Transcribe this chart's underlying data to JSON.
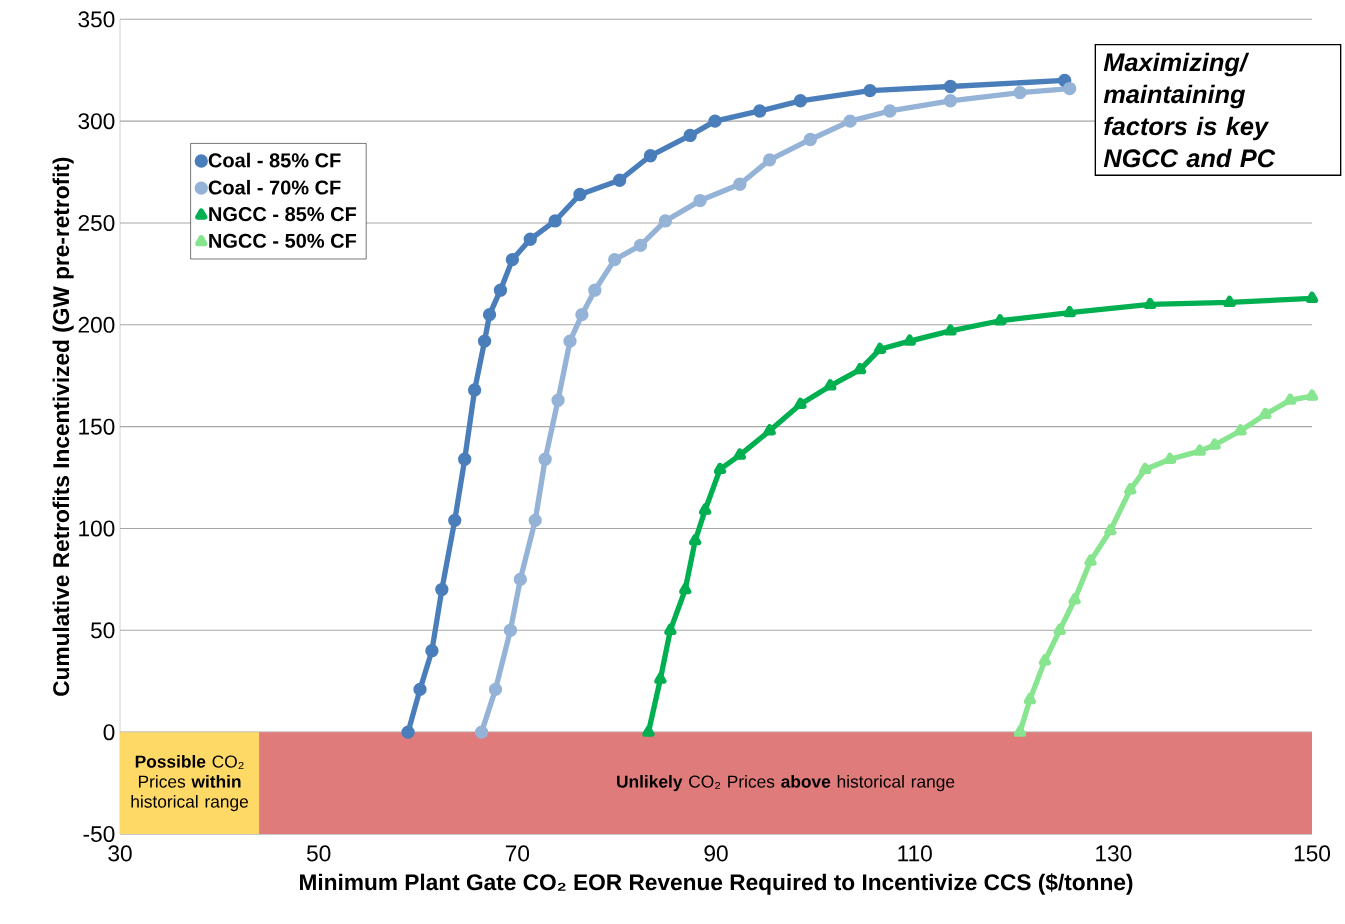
{
  "chart_data": {
    "type": "line",
    "xlabel": "Minimum  Plant Gate CO₂ EOR Revenue Required to Incentivize CCS ($/tonne)",
    "ylabel": "Cumulative Retrofits Incentivized (GW pre-retrofit)",
    "xlim": [
      30,
      150
    ],
    "ylim": [
      -50,
      350
    ],
    "xticks": [
      30,
      50,
      70,
      90,
      110,
      130,
      150
    ],
    "yticks": [
      -50,
      0,
      50,
      100,
      150,
      200,
      250,
      300,
      350
    ],
    "grid": "y",
    "legend": "top left",
    "series": [
      {
        "name": "Coal - 85% CF",
        "color": "#4a7ebb",
        "marker": "circle",
        "x": [
          59.0,
          60.2,
          61.4,
          62.4,
          63.7,
          64.7,
          65.7,
          66.7,
          67.2,
          68.3,
          69.5,
          71.3,
          73.8,
          76.3,
          80.3,
          83.4,
          87.4,
          89.9,
          94.4,
          98.5,
          105.5,
          113.6,
          125.1
        ],
        "values": [
          0,
          21,
          40,
          70,
          104,
          134,
          168,
          192,
          205,
          217,
          232,
          242,
          251,
          264,
          271,
          283,
          293,
          300,
          305,
          310,
          315,
          317,
          320
        ]
      },
      {
        "name": "Coal - 70% CF",
        "color": "#95b3d7",
        "marker": "circle",
        "x": [
          66.4,
          67.8,
          69.3,
          70.3,
          71.8,
          72.8,
          74.1,
          75.3,
          76.5,
          77.8,
          79.8,
          82.4,
          84.9,
          88.4,
          92.4,
          95.4,
          99.5,
          103.5,
          107.5,
          113.6,
          120.6,
          125.6
        ],
        "values": [
          0,
          21,
          50,
          75,
          104,
          134,
          163,
          192,
          205,
          217,
          232,
          239,
          251,
          261,
          269,
          281,
          291,
          300,
          305,
          310,
          314,
          316
        ]
      },
      {
        "name": "NGCC - 85% CF",
        "color": "#00b050",
        "marker": "triangle",
        "x": [
          83.2,
          84.4,
          85.4,
          86.9,
          87.9,
          88.9,
          90.4,
          92.4,
          95.4,
          98.5,
          101.5,
          104.5,
          106.5,
          109.5,
          113.6,
          118.6,
          125.6,
          133.7,
          141.7,
          150
        ],
        "values": [
          0,
          26,
          50,
          70,
          94,
          109,
          129,
          136,
          148,
          161,
          170,
          178,
          188,
          192,
          197,
          202,
          206,
          210,
          211,
          213
        ]
      },
      {
        "name": "NGCC - 50% CF",
        "color": "#86e58e",
        "marker": "triangle",
        "x": [
          120.6,
          121.6,
          123.1,
          124.6,
          126.1,
          127.7,
          129.7,
          131.7,
          133.2,
          135.7,
          138.7,
          140.2,
          142.8,
          145.3,
          147.8,
          150
        ],
        "values": [
          0,
          16,
          35,
          50,
          65,
          84,
          99,
          119,
          129,
          134,
          138,
          141,
          148,
          156,
          163,
          165
        ]
      }
    ],
    "bands": [
      {
        "axis": "x",
        "from": 30,
        "to": 44,
        "label": "**Possible** CO₂ Prices **within** historical range",
        "color": "#ffd966"
      },
      {
        "axis": "x",
        "from": 44,
        "to": 150,
        "label": "**Unlikely** CO₂ Prices **above** historical range",
        "color": "#e07b7b"
      }
    ],
    "annotations": [
      "Maximizing/ maintaining factors is key NGCC and PC"
    ]
  }
}
